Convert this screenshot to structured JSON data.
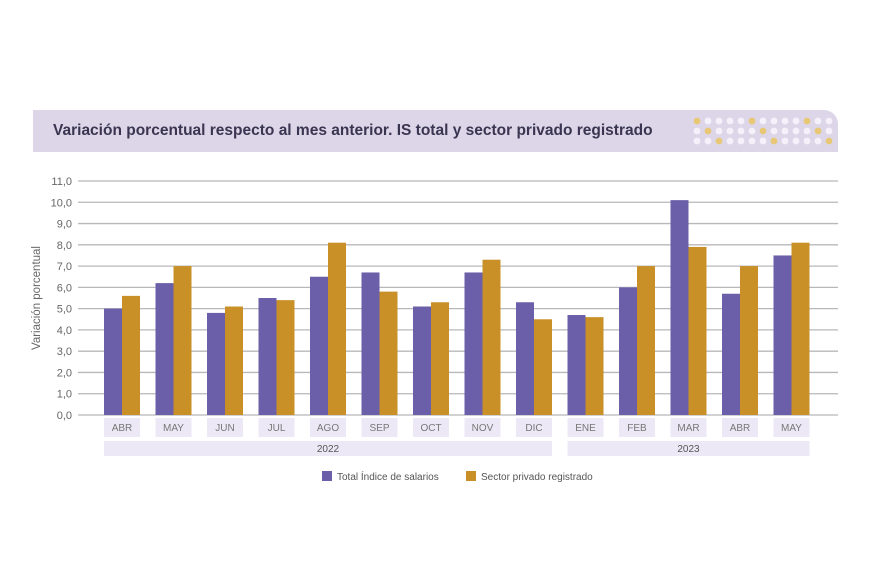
{
  "chart_data": {
    "type": "bar",
    "title": "Variación porcentual respecto al mes anterior. IS total y sector privado registrado",
    "ylabel": "Variación porcentual",
    "xlabel": "",
    "ylim": [
      0,
      11
    ],
    "yticks": [
      "0,0",
      "1,0",
      "2,0",
      "3,0",
      "4,0",
      "5,0",
      "6,0",
      "7,0",
      "8,0",
      "9,0",
      "10,0",
      "11,0"
    ],
    "grid": true,
    "legend_position": "bottom",
    "categories": [
      "ABR",
      "MAY",
      "JUN",
      "JUL",
      "AGO",
      "SEP",
      "OCT",
      "NOV",
      "DIC",
      "ENE",
      "FEB",
      "MAR",
      "ABR",
      "MAY"
    ],
    "year_groups": [
      {
        "label": "2022",
        "count": 9
      },
      {
        "label": "2023",
        "count": 5
      }
    ],
    "series": [
      {
        "name": "Total Índice de salarios",
        "color": "#6a5fa8",
        "values": [
          5.0,
          6.2,
          4.8,
          5.5,
          6.5,
          6.7,
          5.1,
          6.7,
          5.3,
          4.7,
          6.0,
          10.1,
          5.7,
          7.5
        ]
      },
      {
        "name": "Sector privado registrado",
        "color": "#c99028",
        "values": [
          5.6,
          7.0,
          5.1,
          5.4,
          8.1,
          5.8,
          5.3,
          7.3,
          4.5,
          4.6,
          7.0,
          7.9,
          7.0,
          8.1
        ]
      }
    ]
  }
}
